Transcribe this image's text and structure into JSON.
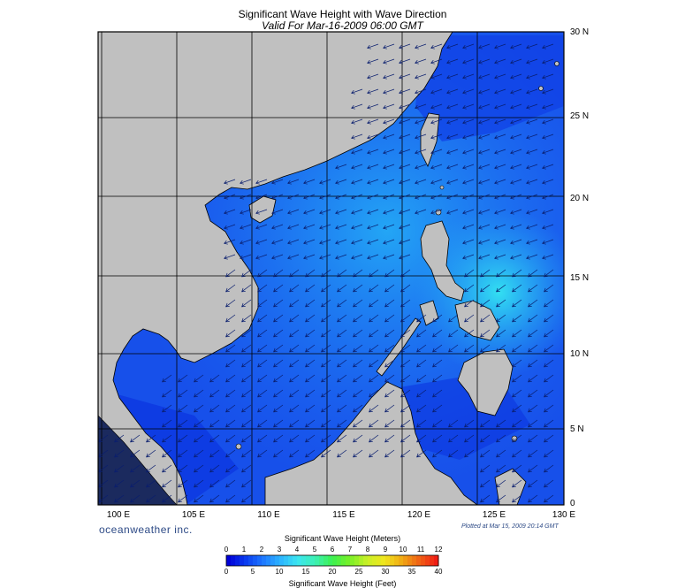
{
  "map": {
    "title": "Significant Wave Height with Wave Direction",
    "subtitle": "Valid For Mar-16-2009 06:00 GMT",
    "lon_labels": [
      "100 E",
      "105 E",
      "110 E",
      "115 E",
      "120 E",
      "125 E",
      "130 E"
    ],
    "lat_labels": [
      "30 N",
      "25 N",
      "20 N",
      "15 N",
      "10 N",
      "5 N",
      "0"
    ],
    "lon_range": [
      99,
      130
    ],
    "lat_range": [
      0,
      30
    ],
    "wave_direction": "from northeast toward southwest",
    "colors": {
      "land": "#c0c0c0",
      "sea_low": "#0a2bdb",
      "sea_mid": "#1f6ef5",
      "sea_high": "#29c0f2",
      "arrow": "#0a1e6e",
      "grid": "#000000"
    }
  },
  "footer": {
    "brand": "oceanweather inc.",
    "plotted": "Plotted at Mar 15, 2009 20:14 GMT"
  },
  "colorbar": {
    "title_meters": "Significant Wave Height (Meters)",
    "title_feet": "Significant Wave Height (Feet)",
    "meters_ticks": [
      "0",
      "1",
      "2",
      "3",
      "4",
      "5",
      "6",
      "7",
      "8",
      "9",
      "10",
      "11",
      "12"
    ],
    "feet_ticks": [
      "0",
      "5",
      "10",
      "15",
      "20",
      "25",
      "30",
      "35",
      "40"
    ],
    "colors": [
      "#0000d8",
      "#0a3cf0",
      "#1e78ff",
      "#2cb4ff",
      "#3ce6f0",
      "#3cf0b4",
      "#3cf050",
      "#78f028",
      "#c8f028",
      "#f0e61e",
      "#f0aa14",
      "#f06414",
      "#f01e14"
    ]
  }
}
